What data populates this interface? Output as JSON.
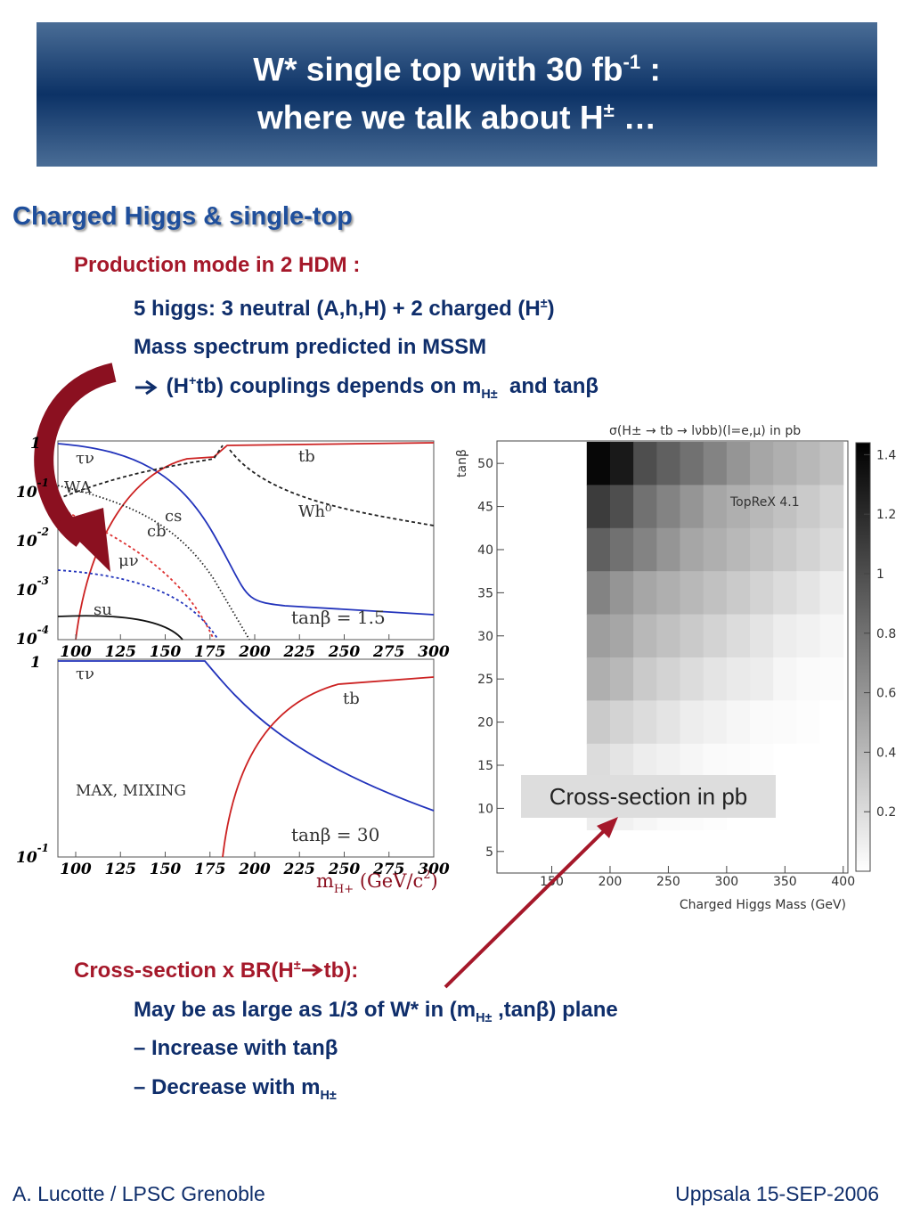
{
  "header": {
    "line1": [
      "W* single top with 30 fb",
      "-1",
      " :"
    ],
    "line2": [
      "where we talk about H",
      "±",
      " …"
    ]
  },
  "heading": "Charged Higgs & single-top",
  "section1": {
    "title": "Production mode in 2 HDM :",
    "bullets": [
      [
        "5 higgs: 3 neutral (A,h,H) + 2 charged (H",
        "±",
        ")"
      ],
      [
        "Mass spectrum predicted in MSSM"
      ],
      [
        "(H",
        "+",
        "tb) couplings depends on m",
        "H±",
        "  and tanβ"
      ]
    ]
  },
  "leftplots": {
    "xticks": [
      100,
      125,
      150,
      175,
      200,
      225,
      250,
      275,
      300
    ],
    "upper_ylabels": [
      [
        "1",
        ""
      ],
      [
        "10",
        "-1"
      ],
      [
        "10",
        "-2"
      ],
      [
        "10",
        "-3"
      ],
      [
        "10",
        "-4"
      ]
    ],
    "lower_ylabels": [
      [
        "1",
        ""
      ],
      [
        "10",
        "-1"
      ]
    ],
    "upper_labels": [
      "τν",
      "WA",
      "cs",
      "cb",
      "μν",
      "su",
      "tb",
      "Wh⁰",
      "tanβ = 1.5"
    ],
    "lower_labels": [
      "τν",
      "tb",
      "MAX, MIXING",
      "tanβ = 30"
    ],
    "xlabel": [
      "m",
      "H+",
      " (GeV/c",
      "2",
      ")"
    ]
  },
  "heatmap": {
    "title": "σ(H± → tb → lνbb)(l=e,μ) in pb",
    "xlabel": "Charged Higgs Mass (GeV)",
    "ylabel": "tanβ",
    "annotation": "TopReX 4.1",
    "xlim": [
      103,
      404
    ],
    "ylim": [
      2.5,
      52.6
    ],
    "xticks": [
      150,
      200,
      250,
      300,
      350,
      400
    ],
    "yticks": [
      5,
      10,
      15,
      20,
      25,
      30,
      35,
      40,
      45,
      50
    ],
    "clim": [
      0,
      1.44
    ],
    "cticks": [
      0.2,
      0.4,
      0.6,
      0.8,
      1,
      1.2,
      1.4
    ],
    "x": [
      190,
      210,
      230,
      250,
      270,
      290,
      310,
      330,
      350,
      370,
      390
    ],
    "y": [
      50,
      45,
      40,
      35,
      30,
      25,
      20,
      15,
      10
    ],
    "values": [
      [
        1.4,
        1.3,
        1.0,
        0.9,
        0.8,
        0.7,
        0.6,
        0.5,
        0.45,
        0.4,
        0.35
      ],
      [
        1.1,
        1.0,
        0.8,
        0.7,
        0.6,
        0.5,
        0.45,
        0.4,
        0.35,
        0.3,
        0.25
      ],
      [
        0.9,
        0.8,
        0.7,
        0.6,
        0.5,
        0.45,
        0.4,
        0.35,
        0.3,
        0.25,
        0.2
      ],
      [
        0.7,
        0.6,
        0.5,
        0.45,
        0.4,
        0.35,
        0.3,
        0.25,
        0.2,
        0.15,
        0.1
      ],
      [
        0.55,
        0.5,
        0.4,
        0.35,
        0.3,
        0.25,
        0.2,
        0.15,
        0.1,
        0.08,
        0.05
      ],
      [
        0.45,
        0.4,
        0.3,
        0.25,
        0.2,
        0.15,
        0.12,
        0.1,
        0.05,
        0.03,
        0.02
      ],
      [
        0.3,
        0.25,
        0.2,
        0.15,
        0.1,
        0.08,
        0.05,
        0.03,
        0.02,
        0.01,
        0
      ],
      [
        0.2,
        0.15,
        0.1,
        0.08,
        0.05,
        0.03,
        0.02,
        0.01,
        0,
        0,
        0
      ],
      [
        0.1,
        0.08,
        0.05,
        0.03,
        0.02,
        0.01,
        0,
        0,
        0,
        0,
        0
      ]
    ]
  },
  "callout": "Cross-section in pb",
  "section2": {
    "title": [
      "Cross-section x BR(H",
      "±",
      "tb):"
    ],
    "bullets": [
      [
        "May be as large as 1/3 of W* in (m",
        "H±",
        " ,tanβ) plane"
      ],
      [
        "– Increase with tanβ"
      ],
      [
        "– Decrease with m",
        "H±"
      ]
    ]
  },
  "footer": {
    "left": "A. Lucotte / LPSC Grenoble",
    "right": "Uppsala 15-SEP-2006"
  }
}
